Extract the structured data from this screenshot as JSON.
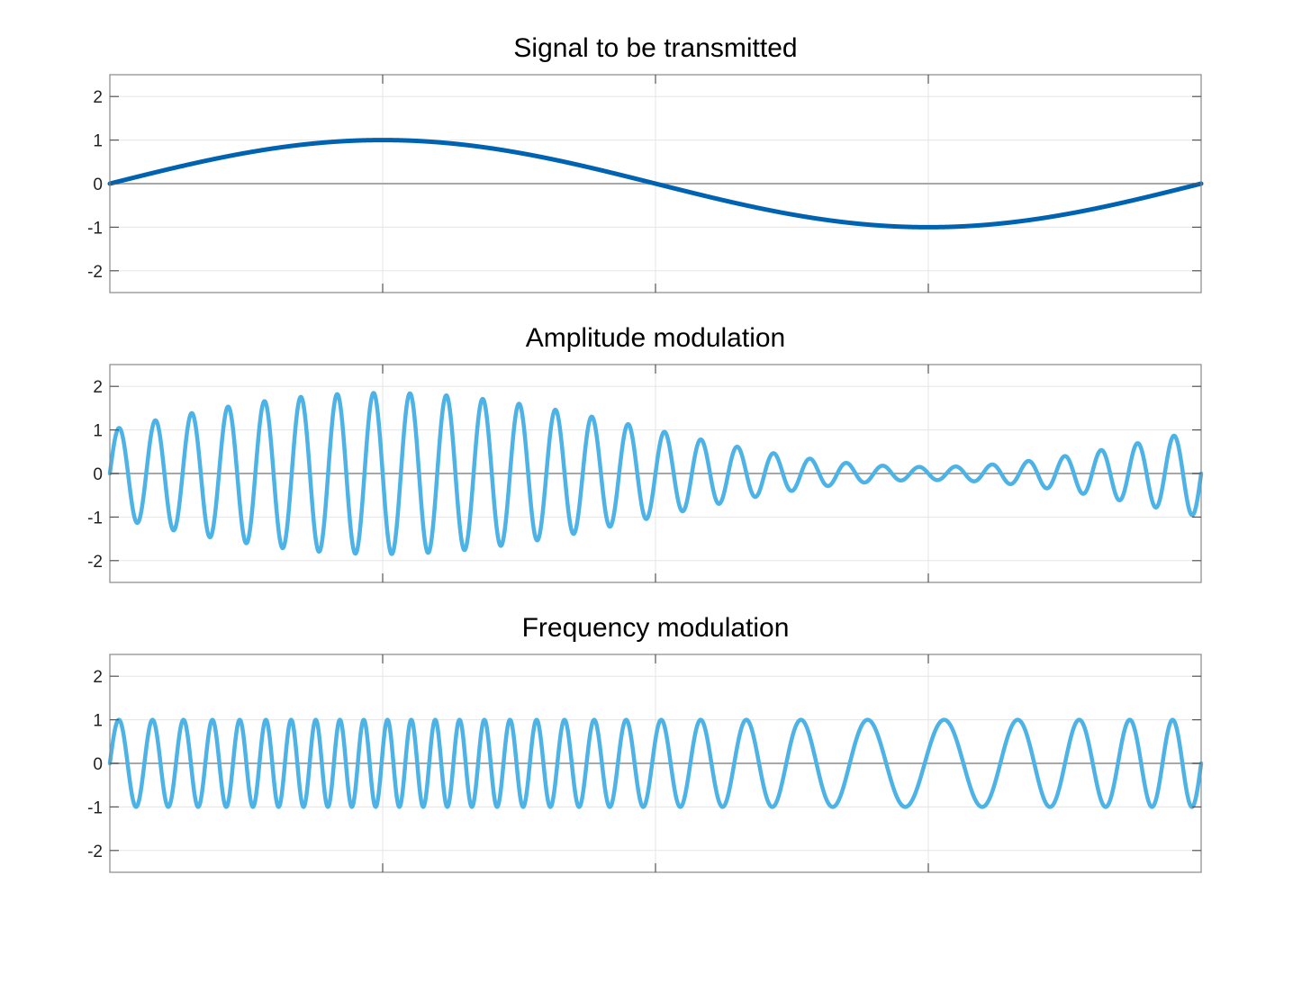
{
  "chart_data": [
    {
      "type": "line",
      "title": "Signal to be transmitted",
      "xlabel": "",
      "ylabel": "",
      "xlim": [
        0,
        1
      ],
      "ylim": [
        -2.5,
        2.5
      ],
      "yticks": [
        2,
        1,
        0,
        -1,
        -2
      ],
      "ytick_labels": [
        "2",
        "1",
        "0",
        "-1",
        "-2"
      ],
      "xticks": [
        0.25,
        0.5,
        0.75
      ],
      "xtick_labels": [],
      "grid": true,
      "zero_line": true,
      "line_color": "#0063B1",
      "signal": {
        "kind": "sine",
        "amplitude": 1,
        "cycles": 1
      },
      "series": [
        {
          "x": [
            0,
            0.125,
            0.25,
            0.375,
            0.5,
            0.625,
            0.75,
            0.875,
            1
          ],
          "values": [
            0,
            0.71,
            1,
            0.71,
            0,
            -0.71,
            -1,
            -0.71,
            0
          ]
        }
      ]
    },
    {
      "type": "line",
      "title": "Amplitude modulation",
      "xlabel": "",
      "ylabel": "",
      "xlim": [
        0,
        1
      ],
      "ylim": [
        -2.5,
        2.5
      ],
      "yticks": [
        2,
        1,
        0,
        -1,
        -2
      ],
      "ytick_labels": [
        "2",
        "1",
        "0",
        "-1",
        "-2"
      ],
      "xticks": [
        0.25,
        0.5,
        0.75
      ],
      "xtick_labels": [],
      "grid": true,
      "zero_line": true,
      "line_color": "#4DB3E6",
      "signal": {
        "kind": "am",
        "carrier_cycles": 30,
        "envelope_offset": 1,
        "modulation_index": 0.85
      },
      "series": [
        {
          "x": [
            0,
            0.125,
            0.25,
            0.375,
            0.5,
            0.625,
            0.75,
            0.875,
            1
          ],
          "values": [
            1.0,
            1.6,
            1.85,
            1.6,
            1.0,
            0.4,
            0.15,
            0.4,
            1.0
          ]
        }
      ]
    },
    {
      "type": "line",
      "title": "Frequency modulation",
      "xlabel": "",
      "ylabel": "",
      "xlim": [
        0,
        1
      ],
      "ylim": [
        -2.5,
        2.5
      ],
      "yticks": [
        2,
        1,
        0,
        -1,
        -2
      ],
      "ytick_labels": [
        "2",
        "1",
        "0",
        "-1",
        "-2"
      ],
      "xticks": [
        0.25,
        0.5,
        0.75
      ],
      "xtick_labels": [],
      "grid": true,
      "zero_line": true,
      "line_color": "#4DB3E6",
      "signal": {
        "kind": "fm",
        "carrier_cycles": 30,
        "frequency_deviation": 16,
        "amplitude": 1
      },
      "series": [
        {
          "x": [
            0,
            0.125,
            0.25,
            0.375,
            0.5,
            0.625,
            0.75,
            0.875,
            1
          ],
          "values": [
            30,
            41.3,
            46,
            41.3,
            30,
            18.7,
            14,
            18.7,
            30
          ]
        }
      ]
    }
  ],
  "colors": {
    "axes_border": "#888888",
    "grid": "#E5E5E5",
    "zero_line": "#A8A8A8",
    "signal_dark": "#0063B1",
    "signal_light": "#4DB3E6"
  }
}
